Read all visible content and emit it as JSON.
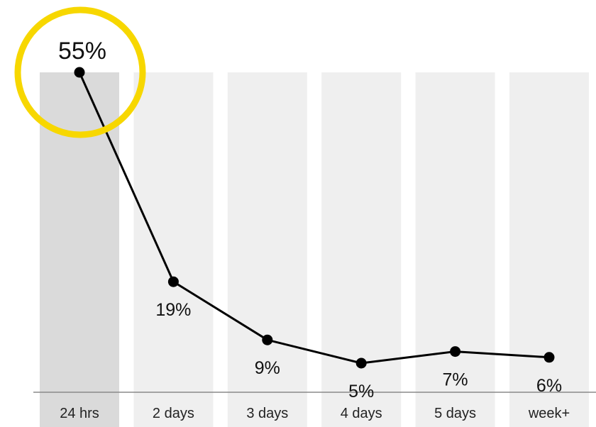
{
  "chart_data": {
    "type": "line",
    "title": "",
    "xlabel": "",
    "ylabel": "",
    "categories": [
      "24 hrs",
      "2 days",
      "3 days",
      "4 days",
      "5 days",
      "week+"
    ],
    "series": [
      {
        "values": [
          55,
          19,
          9,
          5,
          7,
          6
        ],
        "labels": [
          "55%",
          "19%",
          "9%",
          "5%",
          "7%",
          "6%"
        ]
      }
    ],
    "unit": "%",
    "ylim": [
      0,
      55
    ],
    "grid": false,
    "highlight": {
      "category_index": 0,
      "color": "#f7d700"
    },
    "colors": {
      "line": "#000000",
      "column": "#efefef",
      "column_highlight": "#dadada"
    }
  }
}
